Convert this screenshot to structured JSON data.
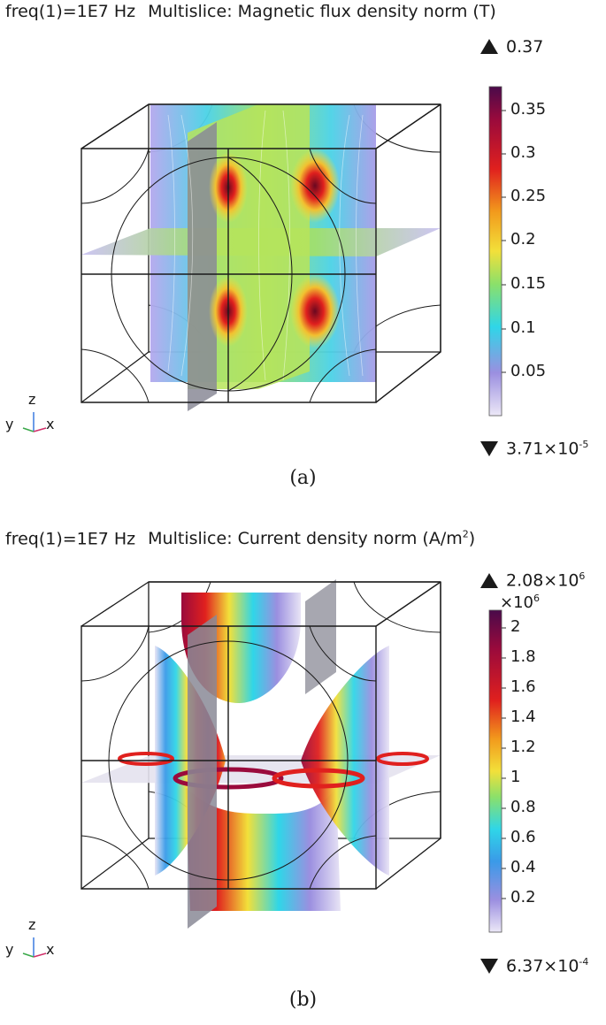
{
  "panels": [
    {
      "id": "a",
      "freq_label": "freq(1)=1E7 Hz",
      "title": "Multislice: Magnetic flux density norm (T)",
      "colorbar": {
        "max_label": "0.37",
        "min_label": "3.71×10",
        "min_exp": "-5",
        "multiplier": "",
        "ticks": [
          "0.35",
          "0.3",
          "0.25",
          "0.2",
          "0.15",
          "0.1",
          "0.05"
        ]
      },
      "axes": {
        "z": "z",
        "y": "y",
        "x": "x"
      },
      "caption": "(a)"
    },
    {
      "id": "b",
      "freq_label": "freq(1)=1E7 Hz",
      "title_pre": "Multislice: Current density norm (A/m",
      "title_sup": "2",
      "title_post": ")",
      "colorbar": {
        "max_label": "2.08×10",
        "max_exp": "6",
        "min_label": "6.37×10",
        "min_exp": "-4",
        "multiplier": "×10",
        "multiplier_exp": "6",
        "ticks": [
          "2",
          "1.8",
          "1.6",
          "1.4",
          "1.2",
          "1",
          "0.8",
          "0.6",
          "0.4",
          "0.2"
        ]
      },
      "axes": {
        "z": "z",
        "y": "y",
        "x": "x"
      },
      "caption": "(b)"
    }
  ],
  "colors": {
    "colormap": [
      "#e8e4f5",
      "#9b8fe0",
      "#2fd6e8",
      "#8be06a",
      "#f2e03a",
      "#f29a1c",
      "#e0201e",
      "#9a0a3c",
      "#4a0a4a"
    ],
    "frame": "#1a1a1a",
    "slice_gray": "#8a8a96"
  }
}
